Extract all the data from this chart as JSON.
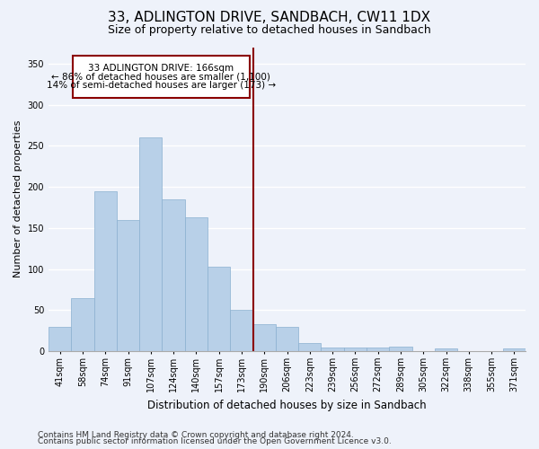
{
  "title": "33, ADLINGTON DRIVE, SANDBACH, CW11 1DX",
  "subtitle": "Size of property relative to detached houses in Sandbach",
  "xlabel": "Distribution of detached houses by size in Sandbach",
  "ylabel": "Number of detached properties",
  "categories": [
    "41sqm",
    "58sqm",
    "74sqm",
    "91sqm",
    "107sqm",
    "124sqm",
    "140sqm",
    "157sqm",
    "173sqm",
    "190sqm",
    "206sqm",
    "223sqm",
    "239sqm",
    "256sqm",
    "272sqm",
    "289sqm",
    "305sqm",
    "322sqm",
    "338sqm",
    "355sqm",
    "371sqm"
  ],
  "values": [
    30,
    65,
    195,
    160,
    260,
    185,
    163,
    103,
    50,
    33,
    30,
    10,
    5,
    5,
    5,
    6,
    0,
    3,
    0,
    0,
    3
  ],
  "bar_color": "#b8d0e8",
  "bar_edge_color": "#8ab0d0",
  "vline_color": "#8b0000",
  "annotation_text_line1": "33 ADLINGTON DRIVE: 166sqm",
  "annotation_text_line2": "← 86% of detached houses are smaller (1,100)",
  "annotation_text_line3": "14% of semi-detached houses are larger (173) →",
  "annotation_box_color": "#ffffff",
  "annotation_box_edge_color": "#8b0000",
  "ylim": [
    0,
    370
  ],
  "yticks": [
    0,
    50,
    100,
    150,
    200,
    250,
    300,
    350
  ],
  "footer_line1": "Contains HM Land Registry data © Crown copyright and database right 2024.",
  "footer_line2": "Contains public sector information licensed under the Open Government Licence v3.0.",
  "background_color": "#eef2fa",
  "grid_color": "#ffffff",
  "title_fontsize": 11,
  "subtitle_fontsize": 9,
  "annotation_fontsize": 7.5,
  "axis_fontsize": 7,
  "footer_fontsize": 6.5
}
